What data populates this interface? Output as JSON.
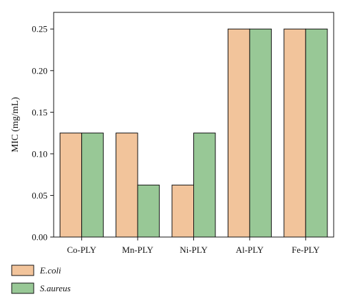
{
  "chart_data": {
    "type": "bar",
    "categories": [
      "Co-PLY",
      "Mn-PLY",
      "Ni-PLY",
      "Al-PLY",
      "Fe-PLY"
    ],
    "series": [
      {
        "name": "E.coli",
        "values": [
          0.125,
          0.125,
          0.0625,
          0.25,
          0.25
        ],
        "color": "#f2c49b"
      },
      {
        "name": "S.aureus",
        "values": [
          0.125,
          0.0625,
          0.125,
          0.25,
          0.25
        ],
        "color": "#98c896"
      }
    ],
    "ylabel": "MIC (mg/mL)",
    "xlabel": "",
    "ylim": [
      0,
      0.27
    ],
    "yticks": [
      "0.00",
      "0.05",
      "0.10",
      "0.15",
      "0.20",
      "0.25"
    ],
    "grid": false,
    "legend_position": "bottom-left"
  }
}
